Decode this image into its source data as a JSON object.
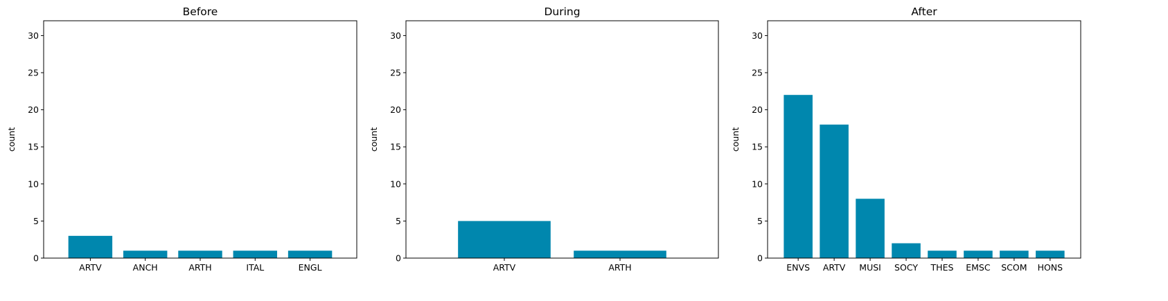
{
  "colors": {
    "bar": "#0087ae"
  },
  "chart_data": [
    {
      "type": "bar",
      "title": "Before",
      "ylabel": "count",
      "xlabel": "",
      "ylim": [
        0,
        32
      ],
      "yticks": [
        0,
        5,
        10,
        15,
        20,
        25,
        30
      ],
      "categories": [
        "ARTV",
        "ANCH",
        "ARTH",
        "ITAL",
        "ENGL"
      ],
      "values": [
        3,
        1,
        1,
        1,
        1
      ],
      "grid": false
    },
    {
      "type": "bar",
      "title": "During",
      "ylabel": "count",
      "xlabel": "",
      "ylim": [
        0,
        32
      ],
      "yticks": [
        0,
        5,
        10,
        15,
        20,
        25,
        30
      ],
      "categories": [
        "ARTV",
        "ARTH"
      ],
      "values": [
        5,
        1
      ],
      "grid": false
    },
    {
      "type": "bar",
      "title": "After",
      "ylabel": "count",
      "xlabel": "",
      "ylim": [
        0,
        32
      ],
      "yticks": [
        0,
        5,
        10,
        15,
        20,
        25,
        30
      ],
      "categories": [
        "ENVS",
        "ARTV",
        "MUSI",
        "SOCY",
        "THES",
        "EMSC",
        "SCOM",
        "HONS"
      ],
      "values": [
        22,
        18,
        8,
        2,
        1,
        1,
        1,
        1
      ],
      "grid": false
    }
  ]
}
